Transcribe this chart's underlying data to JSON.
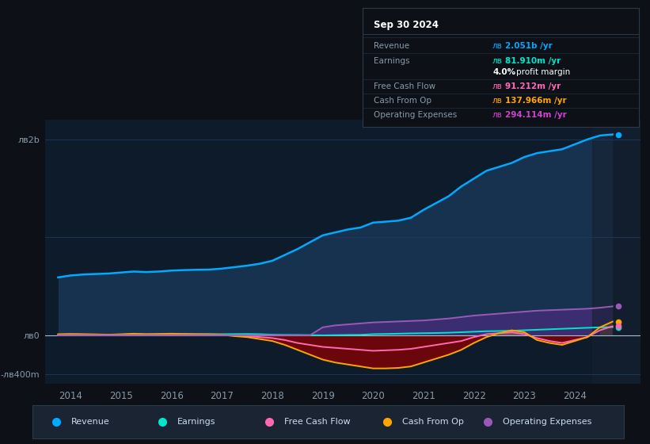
{
  "bg_color": "#0d1117",
  "plot_bg_color": "#0d1b2a",
  "grid_color": "#1e3a5f",
  "text_color": "#8899aa",
  "years": [
    2013.75,
    2014.0,
    2014.25,
    2014.5,
    2014.75,
    2015.0,
    2015.25,
    2015.5,
    2015.75,
    2016.0,
    2016.25,
    2016.5,
    2016.75,
    2017.0,
    2017.25,
    2017.5,
    2017.75,
    2018.0,
    2018.25,
    2018.5,
    2018.75,
    2019.0,
    2019.25,
    2019.5,
    2019.75,
    2020.0,
    2020.25,
    2020.5,
    2020.75,
    2021.0,
    2021.25,
    2021.5,
    2021.75,
    2022.0,
    2022.25,
    2022.5,
    2022.75,
    2023.0,
    2023.25,
    2023.5,
    2023.75,
    2024.0,
    2024.25,
    2024.5,
    2024.75
  ],
  "revenue": [
    590,
    610,
    620,
    625,
    630,
    640,
    650,
    645,
    650,
    660,
    665,
    668,
    670,
    680,
    695,
    710,
    730,
    760,
    820,
    880,
    950,
    1020,
    1050,
    1080,
    1100,
    1150,
    1160,
    1170,
    1200,
    1280,
    1350,
    1420,
    1520,
    1600,
    1680,
    1720,
    1760,
    1820,
    1860,
    1880,
    1900,
    1950,
    2000,
    2040,
    2051
  ],
  "earnings": [
    5,
    8,
    7,
    6,
    5,
    8,
    10,
    9,
    10,
    12,
    11,
    10,
    11,
    10,
    11,
    12,
    10,
    5,
    3,
    2,
    0,
    -2,
    0,
    2,
    3,
    10,
    12,
    15,
    18,
    20,
    22,
    25,
    30,
    35,
    40,
    42,
    45,
    50,
    55,
    60,
    65,
    70,
    75,
    80,
    82
  ],
  "free_cash_flow": [
    2,
    3,
    2,
    1,
    0,
    1,
    2,
    1,
    2,
    3,
    2,
    1,
    2,
    0,
    -5,
    -10,
    -20,
    -30,
    -50,
    -80,
    -100,
    -120,
    -130,
    -140,
    -150,
    -160,
    -155,
    -150,
    -140,
    -120,
    -100,
    -80,
    -60,
    -20,
    10,
    20,
    30,
    10,
    -30,
    -60,
    -80,
    -50,
    -20,
    50,
    91
  ],
  "cash_from_op": [
    10,
    12,
    10,
    8,
    5,
    8,
    15,
    10,
    12,
    15,
    12,
    10,
    8,
    5,
    -10,
    -20,
    -40,
    -60,
    -100,
    -150,
    -200,
    -250,
    -280,
    -300,
    -320,
    -340,
    -340,
    -335,
    -320,
    -280,
    -240,
    -200,
    -150,
    -80,
    -20,
    20,
    50,
    30,
    -50,
    -80,
    -100,
    -60,
    -20,
    80,
    138
  ],
  "operating_expenses": [
    0,
    0,
    0,
    0,
    0,
    0,
    0,
    0,
    0,
    0,
    0,
    0,
    0,
    0,
    0,
    0,
    0,
    0,
    0,
    0,
    0,
    80,
    100,
    110,
    120,
    130,
    135,
    140,
    145,
    150,
    160,
    170,
    185,
    200,
    210,
    220,
    230,
    240,
    250,
    255,
    260,
    265,
    270,
    280,
    294
  ],
  "revenue_color": "#00aaff",
  "revenue_fill": "#1a3a5c",
  "earnings_color": "#00e5cc",
  "fcf_color": "#ff69b4",
  "cashop_color": "#ffa500",
  "opex_color": "#9b59b6",
  "cashop_fill": "#8b0000",
  "opex_fill": "#6a2a9a",
  "ylabel_2b": "лв2b",
  "ylabel_0": "лв0",
  "ylabel_neg400": "-лв400m",
  "x_ticks": [
    2014,
    2015,
    2016,
    2017,
    2018,
    2019,
    2020,
    2021,
    2022,
    2023,
    2024
  ],
  "xmin": 2013.5,
  "xmax": 2025.3,
  "ymin": -500,
  "ymax": 2200,
  "tooltip_title": "Sep 30 2024",
  "tooltip_labels": [
    "Revenue",
    "Earnings",
    "",
    "Free Cash Flow",
    "Cash From Op",
    "Operating Expenses"
  ],
  "tooltip_values": [
    "лв2.051b /yr",
    "лв81.910m /yr",
    "4.0% profit margin",
    "лв91.212m /yr",
    "лв137.966m /yr",
    "лв294.114m /yr"
  ],
  "tooltip_val_colors": [
    "#00aaff",
    "#00e5cc",
    "#ffffff",
    "#ff69b4",
    "#ffa500",
    "#cc44cc"
  ],
  "legend_labels": [
    "Revenue",
    "Earnings",
    "Free Cash Flow",
    "Cash From Op",
    "Operating Expenses"
  ],
  "legend_colors": [
    "#00aaff",
    "#00e5cc",
    "#ff69b4",
    "#ffa500",
    "#9b59b6"
  ]
}
